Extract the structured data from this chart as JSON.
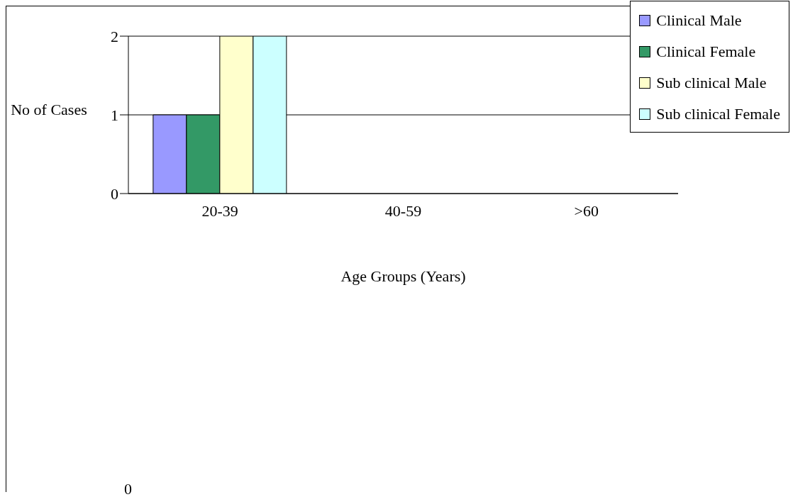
{
  "chart_data": {
    "type": "bar",
    "xlabel": "Age Groups (Years)",
    "ylabel": "No of Cases",
    "categories": [
      "20-39",
      "40-59",
      ">60"
    ],
    "series": [
      {
        "name": "Clinical Male",
        "color": "#9999ff",
        "values": [
          1,
          0,
          0
        ]
      },
      {
        "name": "Clinical Female",
        "color": "#339966",
        "values": [
          1,
          0,
          0
        ]
      },
      {
        "name": "Sub clinical Male",
        "color": "#ffffcc",
        "values": [
          2,
          0,
          0
        ]
      },
      {
        "name": "Sub clinical Female",
        "color": "#ccffff",
        "values": [
          2,
          0,
          0
        ]
      }
    ],
    "ylim": [
      0,
      2
    ],
    "yticks": [
      0,
      1,
      2
    ],
    "grid": "y",
    "legend": "top right",
    "annotations": [
      "0"
    ]
  }
}
